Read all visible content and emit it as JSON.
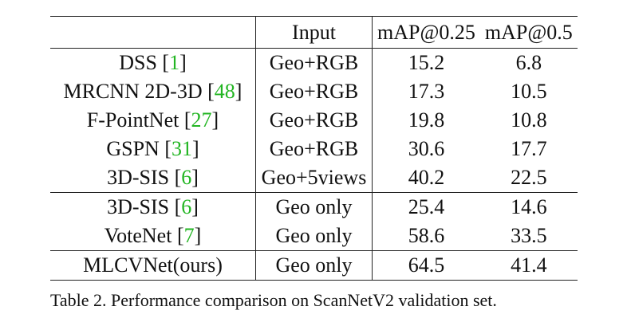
{
  "table": {
    "headers": [
      "",
      "Input",
      "mAP@0.25",
      "mAP@0.5"
    ],
    "rows": [
      {
        "method": "DSS",
        "cite": "1",
        "input": "Geo+RGB",
        "map25": "15.2",
        "map50": "6.8"
      },
      {
        "method": "MRCNN 2D-3D",
        "cite": "48",
        "input": "Geo+RGB",
        "map25": "17.3",
        "map50": "10.5"
      },
      {
        "method": "F-PointNet",
        "cite": "27",
        "input": "Geo+RGB",
        "map25": "19.8",
        "map50": "10.8"
      },
      {
        "method": "GSPN",
        "cite": "31",
        "input": "Geo+RGB",
        "map25": "30.6",
        "map50": "17.7"
      },
      {
        "method": "3D-SIS",
        "cite": "6",
        "input": "Geo+5views",
        "map25": "40.2",
        "map50": "22.5"
      },
      {
        "method": "3D-SIS",
        "cite": "6",
        "input": "Geo only",
        "map25": "25.4",
        "map50": "14.6"
      },
      {
        "method": "VoteNet",
        "cite": "7",
        "input": "Geo only",
        "map25": "58.6",
        "map50": "33.5"
      },
      {
        "method": "MLCVNet(ours)",
        "cite": "",
        "input": "Geo only",
        "map25": "64.5",
        "map50": "41.4"
      }
    ]
  },
  "caption": "Table 2. Performance comparison on ScanNetV2 validation set.",
  "colors": {
    "citation": "#22b522",
    "rule": "#222222",
    "text": "#111111"
  }
}
